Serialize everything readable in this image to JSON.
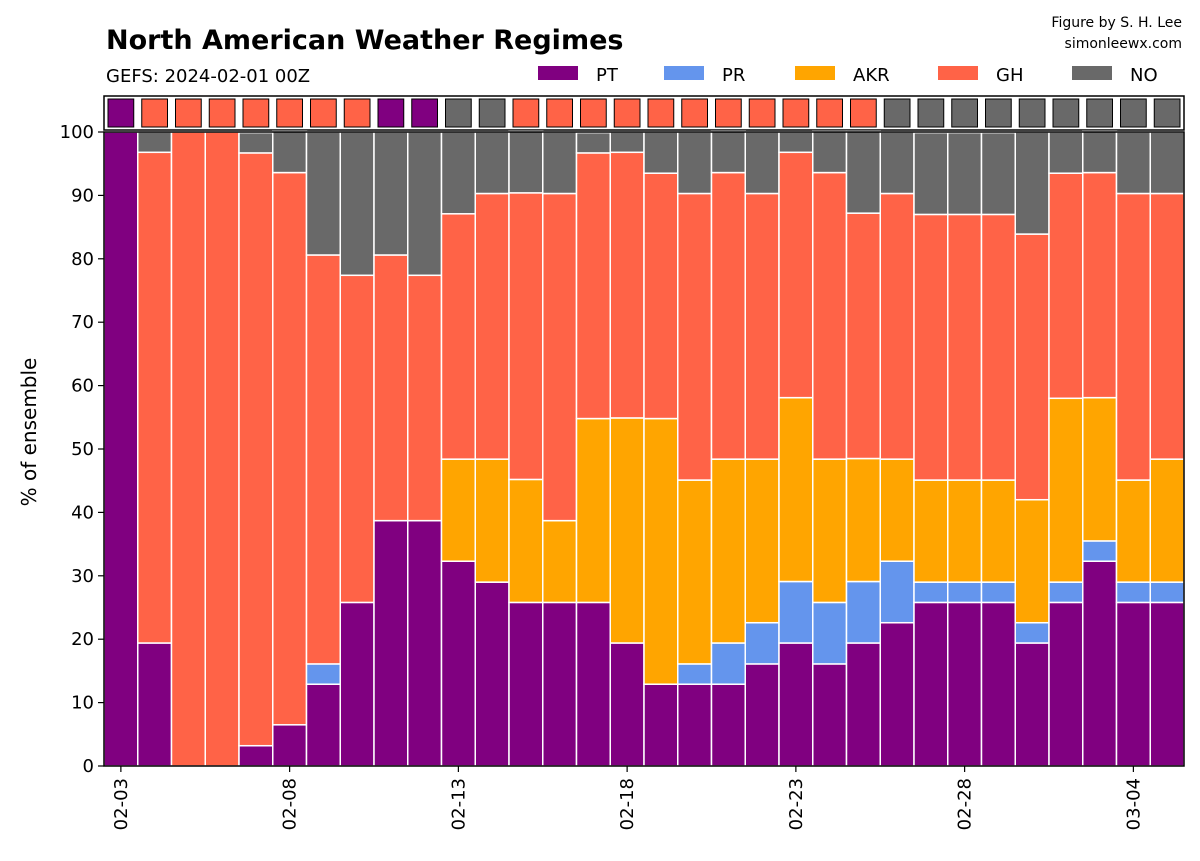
{
  "chart_data": {
    "type": "bar",
    "stacked": true,
    "title": "North American Weather Regimes",
    "subtitle": "GEFS: 2024-02-01 00Z",
    "credit": [
      "Figure by S. H. Lee",
      "simonleewx.com"
    ],
    "ylabel": "% of ensemble",
    "ylim": [
      0,
      100
    ],
    "yticks": [
      0,
      10,
      20,
      30,
      40,
      50,
      60,
      70,
      80,
      90,
      100
    ],
    "grid": true,
    "legend_position": "top-right",
    "x": [
      "02-03",
      "02-04",
      "02-05",
      "02-06",
      "02-07",
      "02-08",
      "02-09",
      "02-10",
      "02-11",
      "02-12",
      "02-13",
      "02-14",
      "02-15",
      "02-16",
      "02-17",
      "02-18",
      "02-19",
      "02-20",
      "02-21",
      "02-22",
      "02-23",
      "02-24",
      "02-25",
      "02-26",
      "02-27",
      "02-28",
      "02-29",
      "03-01",
      "03-02",
      "03-03",
      "03-04",
      "03-05"
    ],
    "xtick_labels": [
      {
        "index": 0,
        "label": "02-03"
      },
      {
        "index": 5,
        "label": "02-08"
      },
      {
        "index": 10,
        "label": "02-13"
      },
      {
        "index": 15,
        "label": "02-18"
      },
      {
        "index": 20,
        "label": "02-23"
      },
      {
        "index": 25,
        "label": "02-28"
      },
      {
        "index": 30,
        "label": "03-04"
      }
    ],
    "series": [
      {
        "name": "PT",
        "color": "#800080",
        "values": [
          100,
          19.4,
          0,
          0,
          3.2,
          6.5,
          12.9,
          25.8,
          38.7,
          38.7,
          32.3,
          29.0,
          25.8,
          25.8,
          25.8,
          19.4,
          12.9,
          12.9,
          12.9,
          16.1,
          19.4,
          16.1,
          19.4,
          22.6,
          25.8,
          25.8,
          25.8,
          19.4,
          25.8,
          32.3,
          25.8,
          25.8
        ]
      },
      {
        "name": "PR",
        "color": "#6495ED",
        "values": [
          0,
          0,
          0,
          0,
          0,
          0,
          3.2,
          0,
          0,
          0,
          0,
          0,
          0,
          0,
          0,
          0,
          0,
          3.2,
          6.5,
          6.5,
          9.7,
          9.7,
          9.7,
          9.7,
          3.2,
          3.2,
          3.2,
          3.2,
          3.2,
          3.2,
          3.2,
          3.2
        ]
      },
      {
        "name": "AKR",
        "color": "#FFA500",
        "values": [
          0,
          0,
          0,
          0,
          0,
          0,
          0,
          0,
          0,
          0,
          16.1,
          19.4,
          19.4,
          12.9,
          29.0,
          35.5,
          41.9,
          29.0,
          29.0,
          25.8,
          29.0,
          22.6,
          19.4,
          16.1,
          16.1,
          16.1,
          16.1,
          19.4,
          29.0,
          22.6,
          16.1,
          19.4
        ]
      },
      {
        "name": "GH",
        "color": "#FF6347",
        "values": [
          0,
          77.4,
          100,
          100,
          93.5,
          87.1,
          64.5,
          51.6,
          41.9,
          38.7,
          38.7,
          41.9,
          45.2,
          51.6,
          41.9,
          41.9,
          38.7,
          45.2,
          45.2,
          41.9,
          38.7,
          45.2,
          38.7,
          41.9,
          41.9,
          41.9,
          41.9,
          41.9,
          35.5,
          35.5,
          45.2,
          41.9
        ]
      },
      {
        "name": "NO",
        "color": "#696969",
        "values": [
          0,
          3.2,
          0,
          0,
          3.2,
          6.5,
          19.4,
          22.6,
          19.4,
          22.6,
          12.9,
          9.7,
          9.7,
          9.7,
          3.2,
          3.2,
          6.5,
          9.7,
          6.5,
          9.7,
          3.2,
          6.5,
          12.9,
          9.7,
          12.9,
          12.9,
          12.9,
          16.1,
          6.5,
          6.5,
          9.7,
          9.7
        ]
      }
    ],
    "dominant_regime": [
      "PT",
      "GH",
      "GH",
      "GH",
      "GH",
      "GH",
      "GH",
      "GH",
      "PT",
      "PT",
      "NO",
      "NO",
      "GH",
      "GH",
      "GH",
      "GH",
      "GH",
      "GH",
      "GH",
      "GH",
      "GH",
      "GH",
      "GH",
      "NO",
      "NO",
      "NO",
      "NO",
      "NO",
      "NO",
      "NO",
      "NO",
      "NO"
    ]
  }
}
